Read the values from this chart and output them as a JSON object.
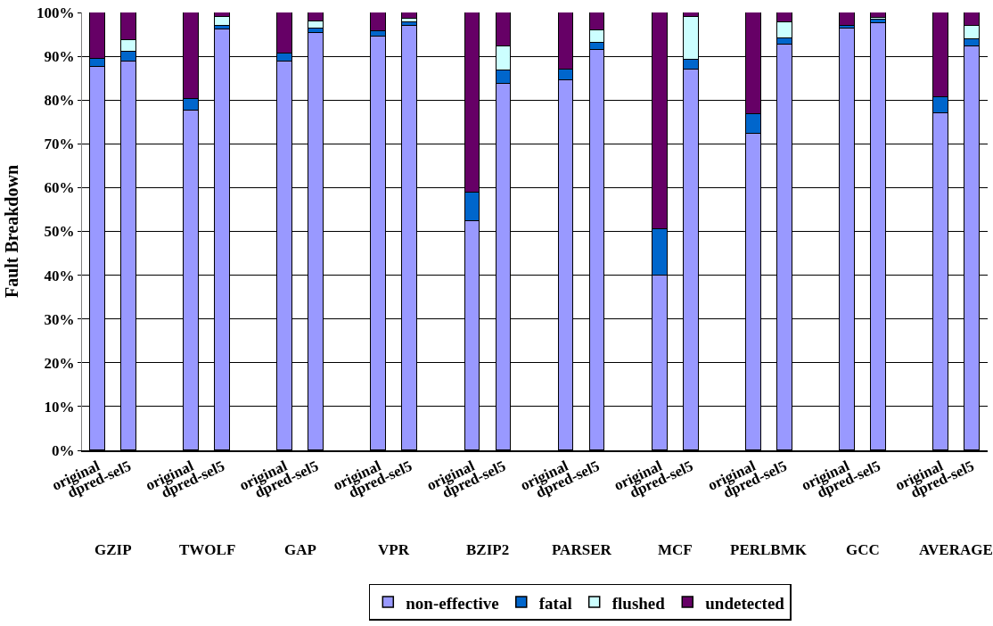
{
  "chart_data": {
    "type": "bar",
    "stacked": true,
    "ylabel": "Fault Breakdown",
    "categories": [
      "original",
      "dpred-sel5",
      "original",
      "dpred-sel5",
      "original",
      "dpred-sel5",
      "original",
      "dpred-sel5",
      "original",
      "dpred-sel5",
      "original",
      "dpred-sel5",
      "original",
      "dpred-sel5",
      "original",
      "dpred-sel5",
      "original",
      "dpred-sel5",
      "original",
      "dpred-sel5"
    ],
    "annotations": [
      "GZIP",
      "TWOLF",
      "GAP",
      "VPR",
      "BZIP2",
      "PARSER",
      "MCF",
      "PERLBMK",
      "GCC",
      "AVERAGE"
    ],
    "series": [
      {
        "name": "non-effective",
        "color": "#9999ff",
        "values": [
          87.5,
          88.9,
          77.5,
          96.2,
          88.7,
          95.3,
          94.5,
          97,
          52.3,
          83.7,
          84.5,
          91.5,
          40,
          87,
          72.3,
          92.7,
          96.3,
          97.5,
          77,
          92.3
        ]
      },
      {
        "name": "fatal",
        "color": "#0066cc",
        "values": [
          2,
          2.2,
          2.8,
          0.8,
          2,
          1,
          1.3,
          0.7,
          6.5,
          3,
          2.5,
          1.5,
          10.5,
          2.3,
          4.5,
          1.3,
          0.7,
          0.8,
          3.7,
          1.5
        ]
      },
      {
        "name": "flushed",
        "color": "#ccffff",
        "values": [
          0,
          2.5,
          0,
          2,
          0,
          1.7,
          0,
          0.8,
          0,
          5.6,
          0,
          3,
          0,
          9.7,
          0,
          3.8,
          0,
          0.5,
          0,
          3.2
        ]
      },
      {
        "name": "undetected",
        "color": "#660066",
        "values": [
          10.5,
          6.4,
          19.7,
          1,
          9.3,
          2,
          4.2,
          1.5,
          41.2,
          7.7,
          13,
          4,
          49.5,
          1,
          23.2,
          2.2,
          3,
          1.2,
          19.3,
          3
        ]
      }
    ],
    "ylim": [
      0,
      100
    ],
    "yticks": [
      {
        "value": 0,
        "label": "0%"
      },
      {
        "value": 10,
        "label": "10%"
      },
      {
        "value": 20,
        "label": "20%"
      },
      {
        "value": 30,
        "label": "30%"
      },
      {
        "value": 40,
        "label": "40%"
      },
      {
        "value": 50,
        "label": "50%"
      },
      {
        "value": 60,
        "label": "60%"
      },
      {
        "value": 70,
        "label": "70%"
      },
      {
        "value": 80,
        "label": "80%"
      },
      {
        "value": 90,
        "label": "90%"
      },
      {
        "value": 100,
        "label": "100%"
      }
    ],
    "grid": "y",
    "legend": "bottom"
  }
}
